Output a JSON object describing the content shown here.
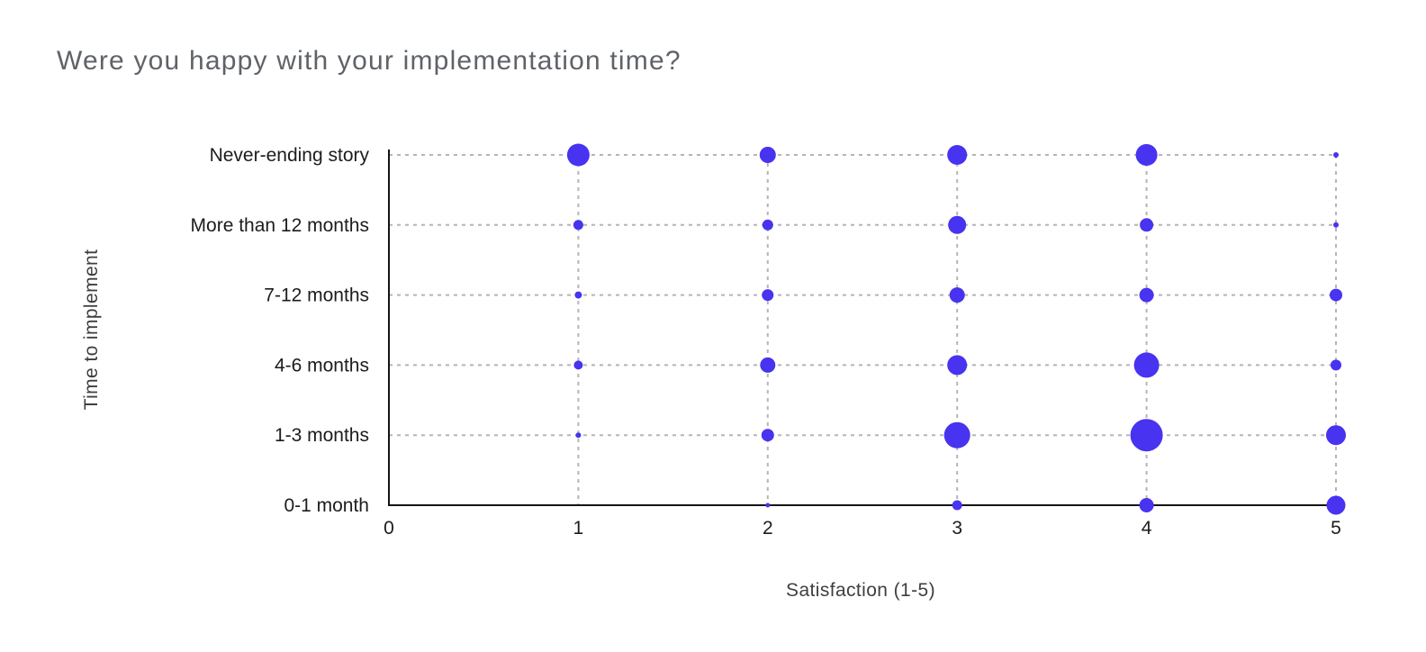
{
  "title": "Were you happy with your implementation time?",
  "chart_data": {
    "type": "scatter",
    "subtype": "bubble",
    "title": "Were you happy with your implementation time?",
    "xlabel": "Satisfaction (1-5)",
    "ylabel": "Time to implement",
    "xlim": [
      0,
      5
    ],
    "x_ticks": [
      "0",
      "1",
      "2",
      "3",
      "4",
      "5"
    ],
    "grid": "dashed",
    "legend": "none",
    "y_categories_top_to_bottom": [
      "Never-ending story",
      "More than 12 months",
      "7-12 months",
      "4-6 months",
      "1-3 months",
      "0-1 month"
    ],
    "size_note": "r = bubble radius in screen px (no numeric labels shown in chart)",
    "rows": [
      {
        "label": "Never-ending story",
        "bubbles": [
          {
            "x": 1,
            "r": 12.5
          },
          {
            "x": 2,
            "r": 9
          },
          {
            "x": 3,
            "r": 11
          },
          {
            "x": 4,
            "r": 12
          },
          {
            "x": 5,
            "r": 3
          }
        ]
      },
      {
        "label": "More than 12 months",
        "bubbles": [
          {
            "x": 1,
            "r": 5.5
          },
          {
            "x": 2,
            "r": 6
          },
          {
            "x": 3,
            "r": 10
          },
          {
            "x": 4,
            "r": 7.5
          },
          {
            "x": 5,
            "r": 3
          }
        ]
      },
      {
        "label": "7-12 months",
        "bubbles": [
          {
            "x": 1,
            "r": 4
          },
          {
            "x": 2,
            "r": 6.5
          },
          {
            "x": 3,
            "r": 8.5
          },
          {
            "x": 4,
            "r": 8
          },
          {
            "x": 5,
            "r": 7
          }
        ]
      },
      {
        "label": "4-6 months",
        "bubbles": [
          {
            "x": 1,
            "r": 5
          },
          {
            "x": 2,
            "r": 8.5
          },
          {
            "x": 3,
            "r": 11
          },
          {
            "x": 4,
            "r": 14
          },
          {
            "x": 5,
            "r": 6
          }
        ]
      },
      {
        "label": "1-3 months",
        "bubbles": [
          {
            "x": 1,
            "r": 3
          },
          {
            "x": 2,
            "r": 7
          },
          {
            "x": 3,
            "r": 14.5
          },
          {
            "x": 4,
            "r": 18
          },
          {
            "x": 5,
            "r": 11
          }
        ]
      },
      {
        "label": "0-1 month",
        "bubbles": [
          {
            "x": 2,
            "r": 2.5
          },
          {
            "x": 3,
            "r": 5.5
          },
          {
            "x": 4,
            "r": 8
          },
          {
            "x": 5,
            "r": 10.5
          }
        ]
      }
    ],
    "colors": {
      "bubble": "#4733f0",
      "grid": "#b5b5b5",
      "axis": "#141414",
      "tick_label": "#1c1c1c",
      "axis_title": "#3d3f42",
      "title": "#5f6368",
      "background": "#ffffff"
    }
  }
}
